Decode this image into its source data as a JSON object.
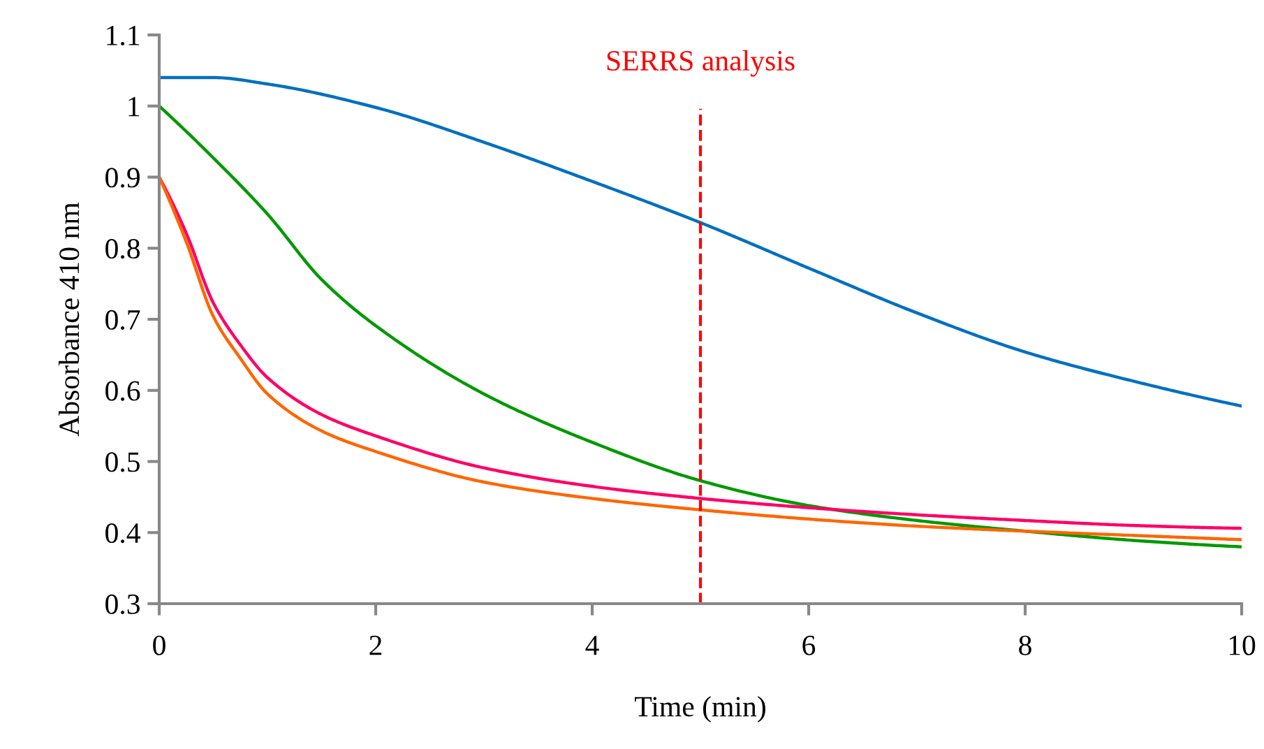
{
  "chart_data": {
    "type": "line",
    "xlabel": "Time (min)",
    "ylabel": "Absorbance 410 nm",
    "xlim": [
      0,
      10
    ],
    "ylim": [
      0.3,
      1.1
    ],
    "xticks": [
      0,
      2,
      4,
      6,
      8,
      10
    ],
    "yticks": [
      0.3,
      0.4,
      0.5,
      0.6,
      0.7,
      0.8,
      0.9,
      1,
      1.1
    ],
    "grid": false,
    "legend": false,
    "marker": "none",
    "line_style": "solid",
    "ref_lines": [
      {
        "axis": "x",
        "value": 5,
        "label": "SERRS analysis",
        "color": "#ff0000",
        "line_style": "dashed"
      }
    ],
    "series": [
      {
        "color": "#0070c0",
        "x": [
          0,
          0.5,
          1,
          2,
          3,
          4,
          5,
          6,
          7,
          8,
          9,
          10
        ],
        "values": [
          1.04,
          1.04,
          1.031,
          0.998,
          0.949,
          0.894,
          0.836,
          0.772,
          0.709,
          0.654,
          0.613,
          0.578
        ]
      },
      {
        "color": "#009900",
        "x": [
          0,
          0.5,
          1,
          1.5,
          2,
          3,
          4,
          5,
          6,
          7,
          8,
          9,
          10
        ],
        "values": [
          1.0,
          0.927,
          0.848,
          0.756,
          0.691,
          0.595,
          0.527,
          0.473,
          0.438,
          0.417,
          0.402,
          0.389,
          0.38
        ]
      },
      {
        "color": "#ff0066",
        "x": [
          0,
          0.25,
          0.5,
          0.75,
          1,
          1.5,
          2,
          3,
          4,
          5,
          6,
          7,
          8,
          9,
          10
        ],
        "values": [
          0.9,
          0.821,
          0.723,
          0.664,
          0.618,
          0.566,
          0.536,
          0.491,
          0.465,
          0.448,
          0.435,
          0.425,
          0.417,
          0.41,
          0.406
        ]
      },
      {
        "color": "#ff6600",
        "x": [
          0,
          0.25,
          0.5,
          0.75,
          1,
          1.5,
          2,
          3,
          4,
          5,
          6,
          7,
          8,
          9,
          10
        ],
        "values": [
          0.9,
          0.809,
          0.704,
          0.645,
          0.595,
          0.543,
          0.514,
          0.471,
          0.448,
          0.432,
          0.419,
          0.409,
          0.402,
          0.396,
          0.39
        ]
      }
    ]
  }
}
